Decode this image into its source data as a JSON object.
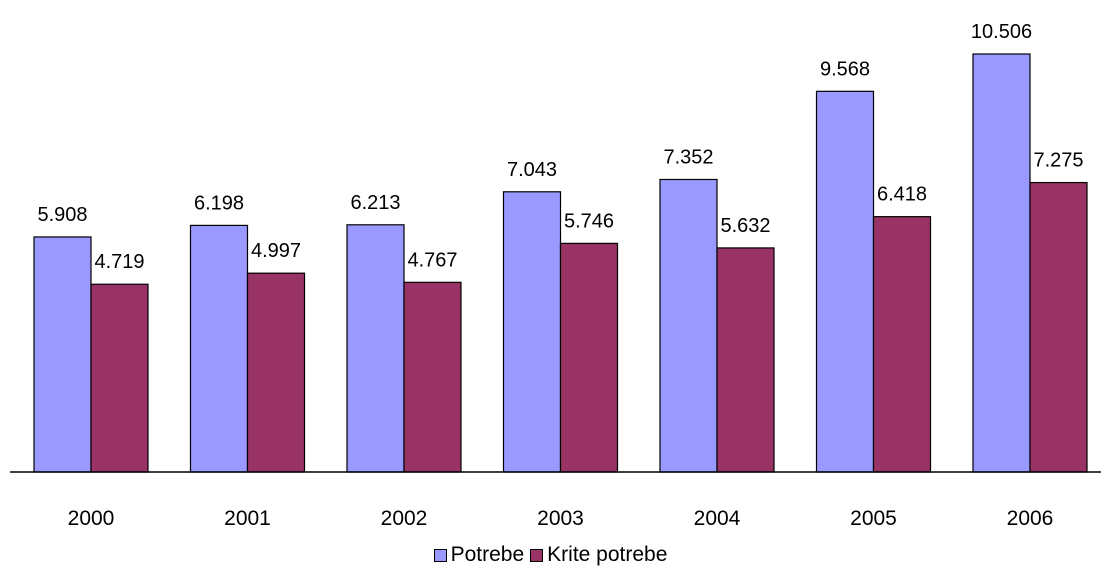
{
  "chart_data": {
    "type": "bar",
    "title": "",
    "xlabel": "",
    "ylabel": "",
    "categories": [
      "2000",
      "2001",
      "2002",
      "2003",
      "2004",
      "2005",
      "2006"
    ],
    "series": [
      {
        "name": "Potrebe",
        "color": "#9999ff",
        "values": [
          5908,
          6198,
          6213,
          7043,
          7352,
          9568,
          10506
        ],
        "labels": [
          "5.908",
          "6.198",
          "6.213",
          "7.043",
          "7.352",
          "9.568",
          "10.506"
        ]
      },
      {
        "name": "Krite potrebe",
        "color": "#993366",
        "values": [
          4719,
          4997,
          4767,
          5746,
          5632,
          6418,
          7275
        ],
        "labels": [
          "4.719",
          "4.997",
          "4.767",
          "5.746",
          "5.632",
          "6.418",
          "7.275"
        ]
      }
    ],
    "ylim": [
      0,
      10506
    ],
    "grid": false,
    "legend_position": "bottom"
  }
}
